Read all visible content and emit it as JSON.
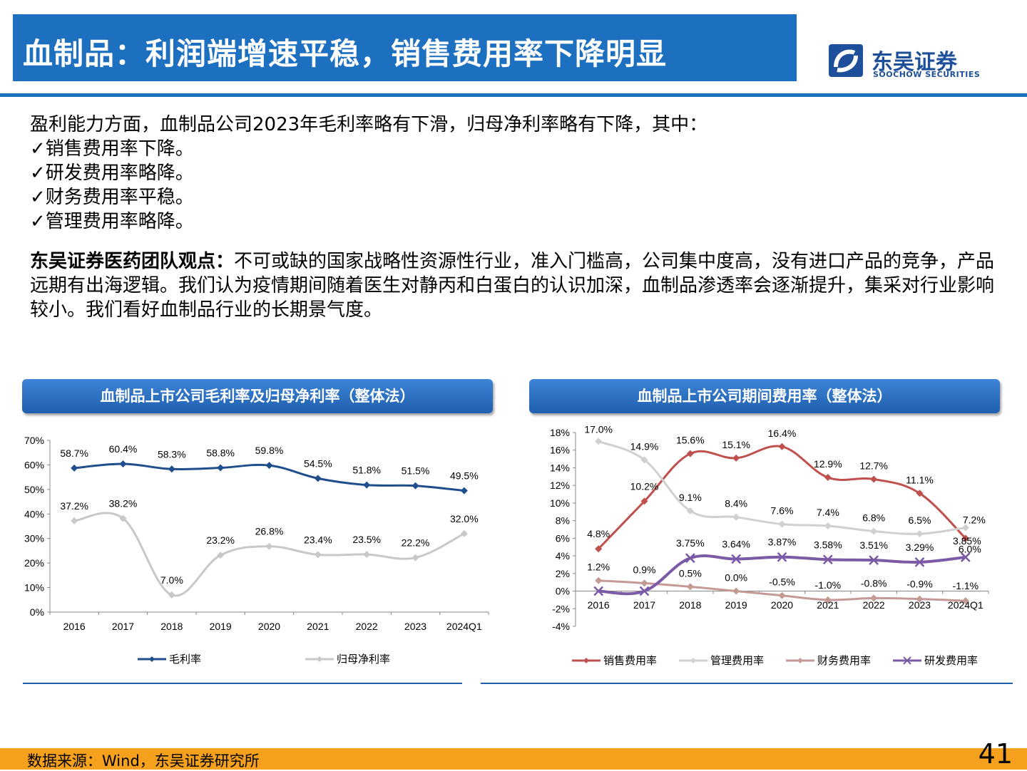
{
  "header": {
    "title": "血制品：利润端增速平稳，销售费用率下降明显"
  },
  "logo": {
    "cn": "东吴证券",
    "en": "SOOCHOW SECURITIES"
  },
  "body": {
    "intro": "盈利能力方面，血制品公司2023年毛利率略有下滑，归母净利率略有下降，其中：",
    "bullets": [
      "✓销售费用率下降。",
      "✓研发费用率略降。",
      "✓财务费用率平稳。",
      "✓管理费用率略降。"
    ],
    "view_label": "东吴证券医药团队观点：",
    "view_text": "不可或缺的国家战略性资源性行业，准入门槛高，公司集中度高，没有进口产品的竞争，产品远期有出海逻辑。我们认为疫情期间随着医生对静丙和白蛋白的认识加深，血制品渗透率会逐渐提升，集采对行业影响较小。我们看好血制品行业的长期景气度。"
  },
  "chart_data": [
    {
      "type": "line",
      "title": "血制品上市公司毛利率及归母净利率（整体法）",
      "categories": [
        "2016",
        "2017",
        "2018",
        "2019",
        "2020",
        "2021",
        "2022",
        "2023",
        "2024Q1"
      ],
      "ylim": [
        0,
        70
      ],
      "yticks": [
        "0%",
        "10%",
        "20%",
        "30%",
        "40%",
        "50%",
        "60%",
        "70%"
      ],
      "series": [
        {
          "name": "毛利率",
          "values": [
            58.7,
            60.4,
            58.3,
            58.8,
            59.8,
            54.5,
            51.8,
            51.5,
            49.5
          ],
          "labels": [
            "58.7%",
            "60.4%",
            "58.3%",
            "58.8%",
            "59.8%",
            "54.5%",
            "51.8%",
            "51.5%",
            "49.5%"
          ],
          "color": "#1f4e8c",
          "marker": "diamond"
        },
        {
          "name": "归母净利率",
          "values": [
            37.2,
            38.2,
            7.0,
            23.2,
            26.8,
            23.4,
            23.5,
            22.2,
            32.0
          ],
          "labels": [
            "37.2%",
            "38.2%",
            "7.0%",
            "23.2%",
            "26.8%",
            "23.4%",
            "23.5%",
            "22.2%",
            "32.0%"
          ],
          "color": "#c8c8c8",
          "marker": "diamond"
        }
      ],
      "legend": "bottom"
    },
    {
      "type": "line",
      "title": "血制品上市公司期间费用率（整体法）",
      "categories": [
        "2016",
        "2017",
        "2018",
        "2019",
        "2020",
        "2021",
        "2022",
        "2023",
        "2024Q1"
      ],
      "ylim": [
        -4,
        18
      ],
      "yticks": [
        "-4%",
        "-2%",
        "0%",
        "2%",
        "4%",
        "6%",
        "8%",
        "10%",
        "12%",
        "14%",
        "16%",
        "18%"
      ],
      "series": [
        {
          "name": "销售费用率",
          "values": [
            4.8,
            10.2,
            15.6,
            15.1,
            16.4,
            12.9,
            12.7,
            11.1,
            6.0
          ],
          "labels": [
            "4.8%",
            "10.2%",
            "15.6%",
            "15.1%",
            "16.4%",
            "12.9%",
            "12.7%",
            "11.1%",
            "6.0%"
          ],
          "color": "#c0504d",
          "marker": "diamond"
        },
        {
          "name": "管理费用率",
          "values": [
            17.0,
            14.9,
            9.1,
            8.4,
            7.6,
            7.4,
            6.8,
            6.5,
            7.2
          ],
          "labels": [
            "17.0%",
            "14.9%",
            "9.1%",
            "8.4%",
            "7.6%",
            "7.4%",
            "6.8%",
            "6.5%",
            "7.2%"
          ],
          "color": "#d0d0d0",
          "marker": "diamond"
        },
        {
          "name": "财务费用率",
          "values": [
            1.2,
            0.9,
            0.5,
            0.0,
            -0.5,
            -1.0,
            -0.8,
            -0.9,
            -1.1
          ],
          "labels": [
            "1.2%",
            "0.9%",
            "0.5%",
            "0.0%",
            "-0.5%",
            "-1.0%",
            "-0.8%",
            "-0.9%",
            "-1.1%"
          ],
          "color": "#c49a94",
          "marker": "diamond"
        },
        {
          "name": "研发费用率",
          "values": [
            0,
            0,
            3.75,
            3.64,
            3.87,
            3.58,
            3.51,
            3.29,
            3.85
          ],
          "labels": [
            "",
            "",
            "3.75%",
            "3.64%",
            "3.87%",
            "3.58%",
            "3.51%",
            "3.29%",
            "3.85%"
          ],
          "color": "#7b5aa6",
          "marker": "x"
        }
      ],
      "legend": "bottom"
    }
  ],
  "footer": {
    "source": "数据来源：Wind，东吴证券研究所",
    "page": "41"
  },
  "colors": {
    "brand_blue": "#1d6fc0",
    "footer_orange": "#f5a11d"
  }
}
